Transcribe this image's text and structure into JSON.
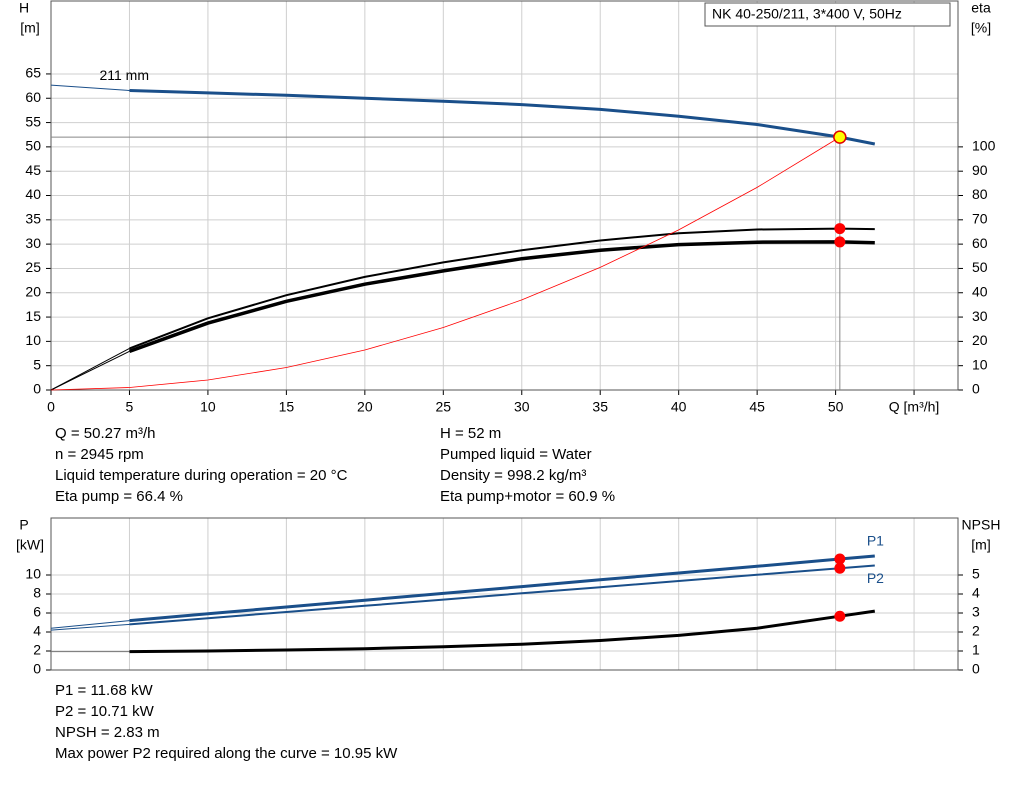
{
  "chart_data": [
    {
      "type": "line",
      "title": "NK 40-250/211, 3*400 V, 50Hz",
      "xlim": [
        0,
        57.8
      ],
      "xticks": [
        0,
        5,
        10,
        15,
        20,
        25,
        30,
        35,
        40,
        45,
        50,
        {
          "value": 55,
          "label": "Q [m³/h]"
        }
      ],
      "ylim": [
        0,
        80
      ],
      "yticks": [
        0,
        5,
        10,
        15,
        20,
        25,
        30,
        35,
        40,
        45,
        50,
        55,
        60,
        65
      ],
      "y2lim": [
        0,
        160
      ],
      "y2ticks": [
        0,
        10,
        20,
        30,
        40,
        50,
        60,
        70,
        80,
        90,
        100
      ],
      "ylabel": [
        "H",
        "[m]"
      ],
      "y2label": [
        "eta",
        "[%]"
      ],
      "grid": true,
      "series": [
        {
          "name": "211 mm",
          "label_at": "start",
          "label_side": "above",
          "color": "#1a4f8a",
          "width": 3,
          "x": [
            5,
            10,
            15,
            20,
            25,
            30,
            35,
            40,
            45,
            50.27,
            52.5
          ],
          "values": [
            61.6,
            61.1,
            60.6,
            60.0,
            59.4,
            58.7,
            57.7,
            56.3,
            54.6,
            52,
            50.6
          ]
        },
        {
          "color": "#1a4f8a",
          "width": 1,
          "x": [
            0,
            5
          ],
          "values": [
            62.7,
            61.6
          ]
        },
        {
          "color": "#000000",
          "width": 2,
          "axis": "y2",
          "x": [
            5,
            10,
            15,
            20,
            25,
            30,
            35,
            40,
            45,
            50.27,
            52.5
          ],
          "values": [
            17.1,
            29.5,
            39,
            46.5,
            52.5,
            57.5,
            61.5,
            64.5,
            66,
            66.4,
            66.2
          ]
        },
        {
          "color": "#000000",
          "width": 1,
          "axis": "y2",
          "x": [
            0,
            5
          ],
          "values": [
            0,
            17.1
          ]
        },
        {
          "color": "#000000",
          "width": 3.5,
          "axis": "y2",
          "x": [
            5,
            10,
            15,
            20,
            25,
            30,
            35,
            40,
            45,
            50.27,
            52.5
          ],
          "values": [
            15.9,
            27.5,
            36.5,
            43.5,
            49,
            54,
            57.5,
            59.8,
            60.8,
            60.9,
            60.6
          ]
        },
        {
          "color": "#000000",
          "width": 1,
          "axis": "y2",
          "x": [
            0,
            5
          ],
          "values": [
            0,
            15.9
          ]
        },
        {
          "color": "#ff0000",
          "width": 0.8,
          "x": [
            0,
            5,
            10,
            15,
            20,
            25,
            30,
            35,
            40,
            45,
            50.27
          ],
          "values": [
            0,
            0.51,
            2.06,
            4.63,
            8.23,
            12.86,
            18.52,
            25.21,
            32.93,
            41.67,
            52
          ]
        },
        {
          "color": "#ff0000",
          "marker": true,
          "axis": "y2",
          "x": [
            50.27,
            50.27
          ],
          "values": [
            66.4,
            60.9
          ]
        }
      ],
      "operating_point": {
        "x": 50.27,
        "y": 52,
        "color": "#ffff00"
      },
      "notes": [
        [
          "Q = 50.27 m³/h",
          "n = 2945 rpm",
          "Liquid temperature during operation = 20 °C",
          "Eta pump = 66.4 %"
        ],
        [
          "H = 52 m",
          "Pumped liquid = Water",
          "Density = 998.2 kg/m³",
          "Eta pump+motor = 60.9 %"
        ]
      ]
    },
    {
      "type": "line",
      "xlim": [
        0,
        57.8
      ],
      "ylim": [
        0,
        16
      ],
      "yticks": [
        0,
        2,
        4,
        6,
        8,
        10
      ],
      "y2lim": [
        0,
        8
      ],
      "y2ticks": [
        0,
        1,
        2,
        3,
        4,
        5
      ],
      "ylabel": [
        "P",
        "[kW]"
      ],
      "y2label": [
        "NPSH",
        "[m]"
      ],
      "grid": true,
      "series": [
        {
          "name": "P1",
          "label_at": "end",
          "label_side": "above",
          "color": "#1a4f8a",
          "width": 3,
          "x": [
            5,
            10,
            15,
            20,
            25,
            30,
            35,
            40,
            45,
            50.27,
            52.5
          ],
          "values": [
            5.2,
            5.92,
            6.63,
            7.35,
            8.06,
            8.78,
            9.49,
            10.21,
            10.92,
            11.68,
            12.0
          ]
        },
        {
          "color": "#1a4f8a",
          "width": 1,
          "x": [
            0,
            5
          ],
          "values": [
            4.4,
            5.2
          ]
        },
        {
          "name": "P2",
          "label_at": "end",
          "label_side": "below",
          "color": "#1a4f8a",
          "width": 2,
          "x": [
            5,
            10,
            15,
            20,
            25,
            30,
            35,
            40,
            45,
            50.27,
            52.5
          ],
          "values": [
            4.8,
            5.45,
            6.11,
            6.76,
            7.41,
            8.07,
            8.72,
            9.37,
            10.02,
            10.71,
            11.0
          ]
        },
        {
          "color": "#1a4f8a",
          "width": 1,
          "x": [
            0,
            5
          ],
          "values": [
            4.2,
            4.8
          ]
        },
        {
          "color": "#000000",
          "width": 3,
          "axis": "y2",
          "x": [
            5,
            10,
            15,
            20,
            25,
            30,
            35,
            40,
            45,
            50.27,
            52.5
          ],
          "values": [
            0.97,
            1.0,
            1.05,
            1.12,
            1.22,
            1.36,
            1.55,
            1.82,
            2.2,
            2.83,
            3.1
          ]
        },
        {
          "color": "#777777",
          "width": 1,
          "axis": "y2",
          "x": [
            0,
            5
          ],
          "values": [
            0.97,
            0.97
          ]
        },
        {
          "color": "#ff0000",
          "marker": true,
          "x": [
            50.27,
            50.27
          ],
          "values": [
            11.68,
            10.71
          ]
        },
        {
          "color": "#ff0000",
          "marker": true,
          "axis": "y2",
          "x": [
            50.27
          ],
          "values": [
            2.83
          ]
        }
      ],
      "notes": [
        [
          "P1 = 11.68 kW",
          "P2 = 10.71 kW",
          "NPSH = 2.83 m",
          "Max power P2 required along the curve = 10.95 kW"
        ]
      ]
    }
  ]
}
